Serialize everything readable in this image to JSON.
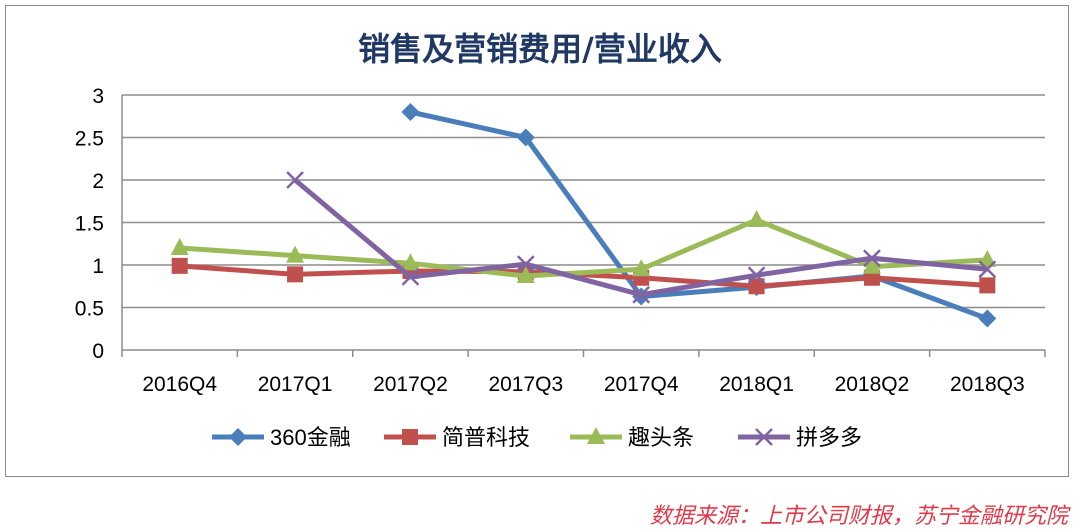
{
  "chart_data": {
    "type": "line",
    "title": "销售及营销费用/营业收入",
    "categories": [
      "2016Q4",
      "2017Q1",
      "2017Q2",
      "2017Q3",
      "2017Q4",
      "2018Q1",
      "2018Q2",
      "2018Q3"
    ],
    "ylim": [
      0,
      3
    ],
    "yticks": [
      "0",
      "0.5",
      "1",
      "1.5",
      "2",
      "2.5",
      "3"
    ],
    "grid": true,
    "legend": "bottom",
    "series": [
      {
        "name": "360金融",
        "color": "#4a7ebb",
        "marker": "diamond",
        "values": [
          null,
          null,
          2.8,
          2.5,
          0.63,
          0.74,
          0.87,
          0.37
        ]
      },
      {
        "name": "简普科技",
        "color": "#c0504d",
        "marker": "square",
        "values": [
          0.99,
          0.89,
          0.93,
          0.92,
          0.85,
          0.75,
          0.85,
          0.76
        ]
      },
      {
        "name": "趣头条",
        "color": "#9bbb59",
        "marker": "triangle",
        "values": [
          1.2,
          1.11,
          1.02,
          0.87,
          0.95,
          1.53,
          0.98,
          1.06
        ]
      },
      {
        "name": "拼多多",
        "color": "#8064a2",
        "marker": "x",
        "values": [
          null,
          2.0,
          0.86,
          1.01,
          0.65,
          0.88,
          1.08,
          0.95
        ]
      }
    ]
  },
  "source": "数据来源：上市公司财报，苏宁金融研究院"
}
